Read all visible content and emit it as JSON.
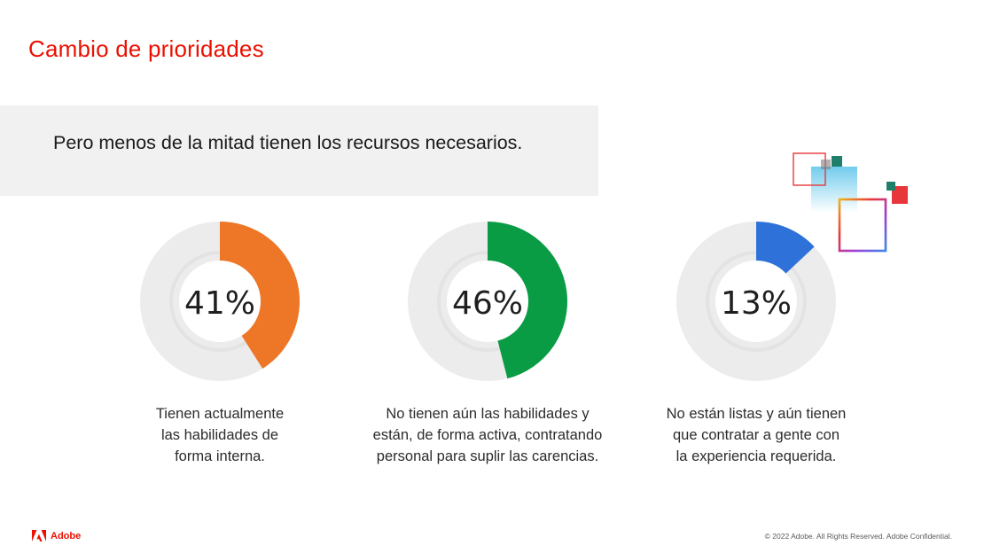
{
  "slide": {
    "title": "Cambio de prioridades",
    "subtitle": "Pero menos de la mitad tienen los recursos necesarios."
  },
  "chart_data": {
    "type": "donut",
    "items": [
      {
        "value": 41,
        "label": "41%",
        "color": "#ed7627",
        "caption_lines": [
          "Tienen actualmente",
          "las habilidades de",
          "forma interna."
        ]
      },
      {
        "value": 46,
        "label": "46%",
        "color": "#0a9b45",
        "caption_lines": [
          "No tienen aún las habilidades y",
          "están, de forma activa, contratando",
          "personal para suplir las carencias."
        ]
      },
      {
        "value": 13,
        "label": "13%",
        "color": "#2e72d9",
        "caption_lines": [
          "No están listas y aún tienen",
          "que contratar a gente con",
          "la experiencia requerida."
        ]
      }
    ]
  },
  "footer": {
    "brand": "Adobe",
    "copyright": "© 2022 Adobe. All Rights Reserved. Adobe Confidential."
  },
  "colors": {
    "accent": "#eb1000",
    "track": "#ececec",
    "band": "#f1f1f1"
  },
  "icons": {
    "brand_logo": "adobe-logo-icon",
    "decoration": "overlapping-squares-decoration"
  }
}
